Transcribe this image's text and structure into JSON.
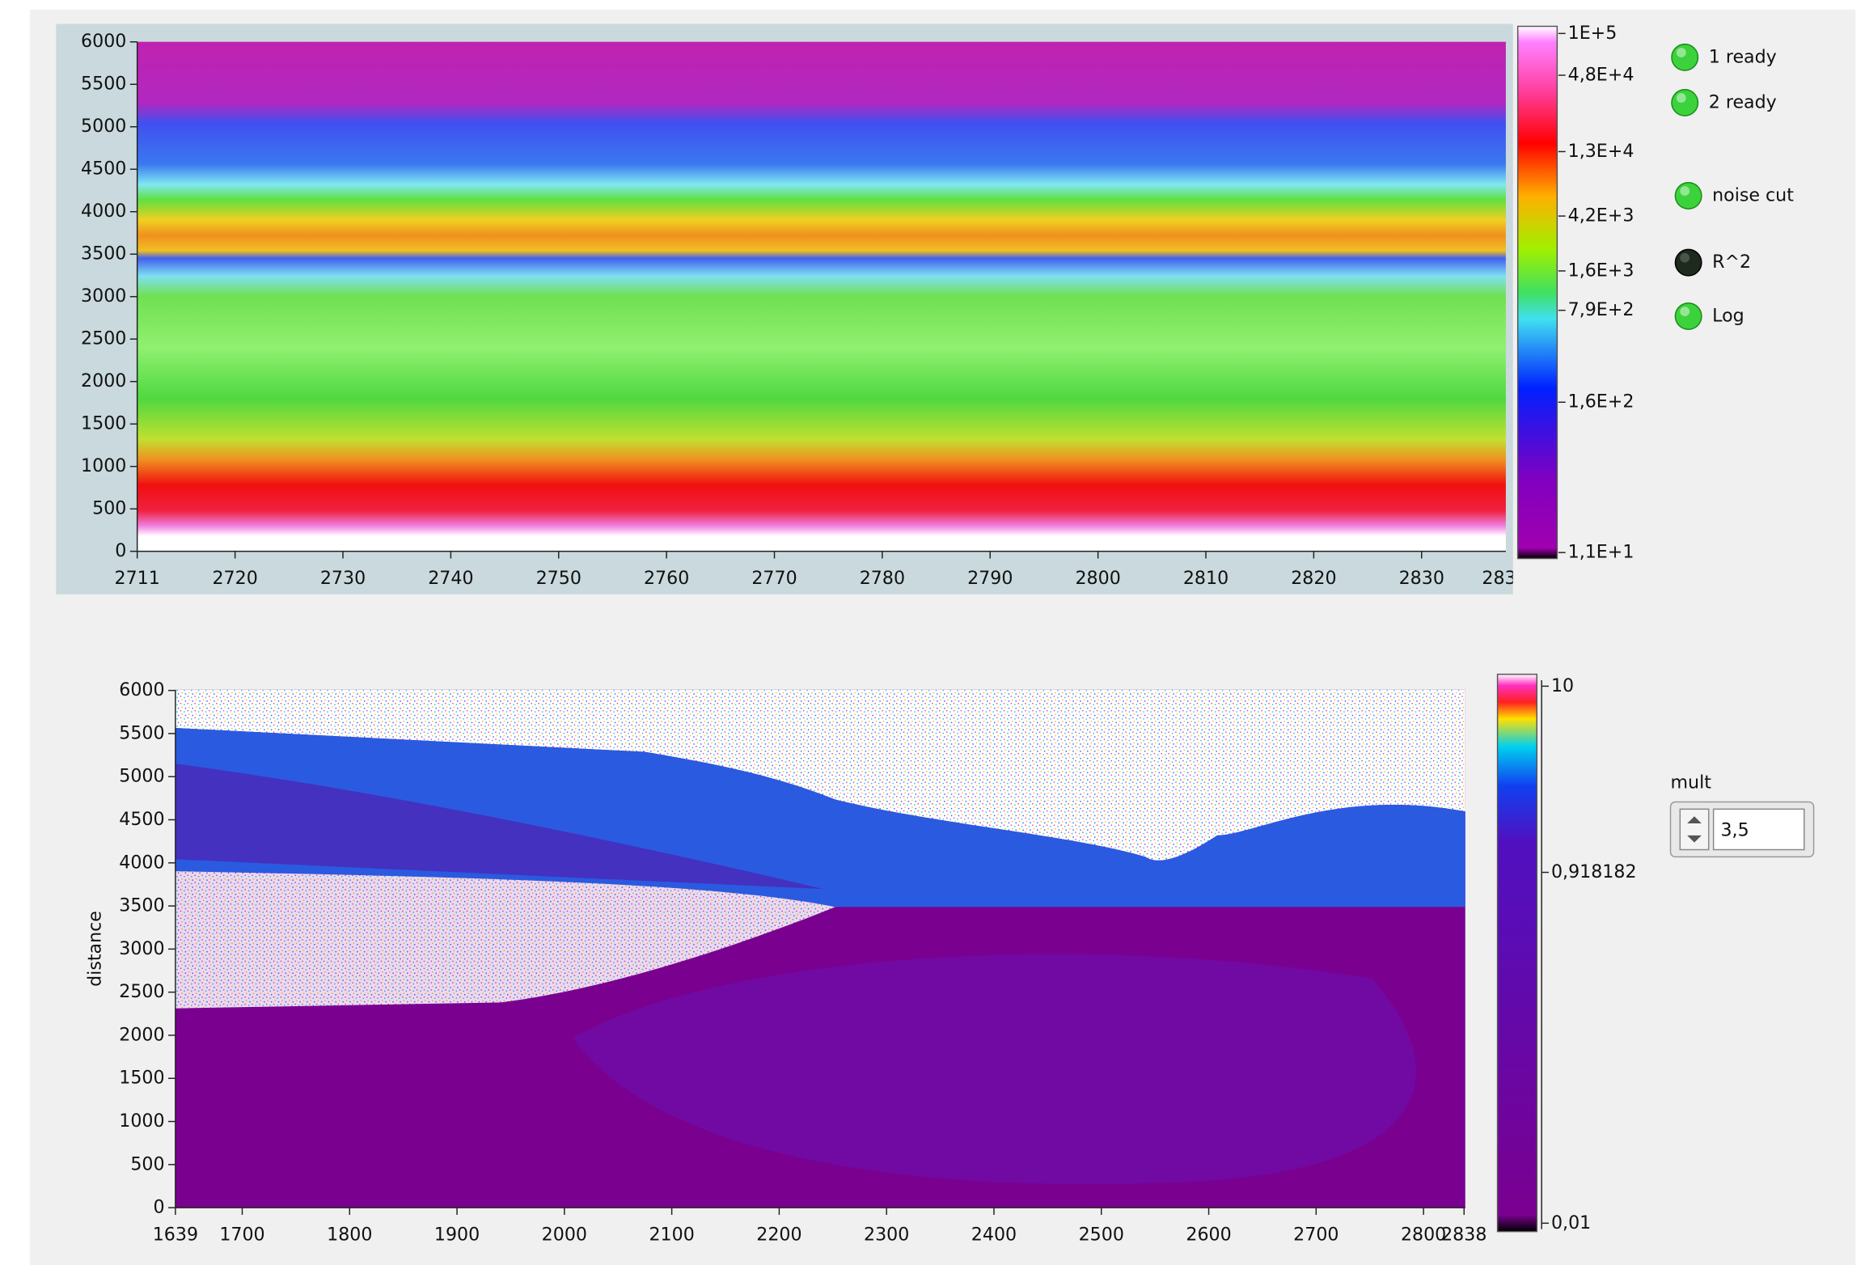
{
  "top_graph": {
    "y_ticks": [
      "0",
      "500",
      "1000",
      "1500",
      "2000",
      "2500",
      "3000",
      "3500",
      "4000",
      "4500",
      "5000",
      "5500",
      "6000"
    ],
    "x_ticks": [
      "2711",
      "2720",
      "2730",
      "2740",
      "2750",
      "2760",
      "2770",
      "2780",
      "2790",
      "2800",
      "2810",
      "2820",
      "2830",
      "283"
    ],
    "scale_labels": [
      "1E+5",
      "4,8E+4",
      "1,3E+4",
      "4,2E+3",
      "1,6E+3",
      "7,9E+2",
      "1,6E+2",
      "1,1E+1"
    ]
  },
  "bottom_graph": {
    "y_label": "distance",
    "y_ticks": [
      "0",
      "500",
      "1000",
      "1500",
      "2000",
      "2500",
      "3000",
      "3500",
      "4000",
      "4500",
      "5000",
      "5500",
      "6000"
    ],
    "x_ticks": [
      "1639",
      "1700",
      "1800",
      "1900",
      "2000",
      "2100",
      "2200",
      "2300",
      "2400",
      "2500",
      "2600",
      "2700",
      "2800",
      "2838"
    ],
    "scale_labels": [
      "10",
      "0,918182",
      "0,01"
    ]
  },
  "indicators": [
    {
      "label": "1 ready",
      "state": "on"
    },
    {
      "label": "2 ready",
      "state": "on"
    },
    {
      "label": "noise cut",
      "state": "on"
    },
    {
      "label": "R^2",
      "state": "off"
    },
    {
      "label": "Log",
      "state": "on"
    }
  ],
  "mult": {
    "label": "mult",
    "value": "3,5"
  }
}
